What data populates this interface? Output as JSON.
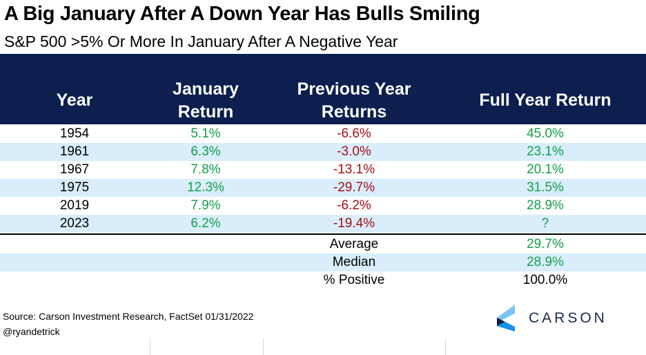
{
  "title": "A Big January After A Down Year Has Bulls Smiling",
  "subtitle": "S&P 500 >5% Or More In January After A Negative Year",
  "chart_data": {
    "type": "table",
    "title": "A Big January After A Down Year Has Bulls Smiling",
    "subtitle": "S&P 500 >5% Or More In January After A Negative Year",
    "headers": {
      "year": "Year",
      "january_1": "January",
      "january_2": "Return",
      "previous_1": "Previous Year",
      "previous_2": "Returns",
      "full": "Full Year Return"
    },
    "rows": [
      {
        "year": "1954",
        "january": "5.1%",
        "previous": "-6.6%",
        "full": "45.0%"
      },
      {
        "year": "1961",
        "january": "6.3%",
        "previous": "-3.0%",
        "full": "23.1%"
      },
      {
        "year": "1967",
        "january": "7.8%",
        "previous": "-13.1%",
        "full": "20.1%"
      },
      {
        "year": "1975",
        "january": "12.3%",
        "previous": "-29.7%",
        "full": "31.5%"
      },
      {
        "year": "2019",
        "january": "7.9%",
        "previous": "-6.2%",
        "full": "28.9%"
      },
      {
        "year": "2023",
        "january": "6.2%",
        "previous": "-19.4%",
        "full": "?"
      }
    ],
    "summary": [
      {
        "label": "Average",
        "value": "29.7%"
      },
      {
        "label": "Median",
        "value": "28.9%"
      },
      {
        "label": "% Positive",
        "value": "100.0%"
      }
    ]
  },
  "footer": {
    "source": "Source: Carson Investment Research, FactSet 01/31/2022",
    "handle": "@ryandetrick",
    "logo_text": "CARSON"
  },
  "colors": {
    "header": "#0c1f4e",
    "band": "#d9eefa",
    "positive": "#13a04a",
    "negative": "#a50f15"
  }
}
